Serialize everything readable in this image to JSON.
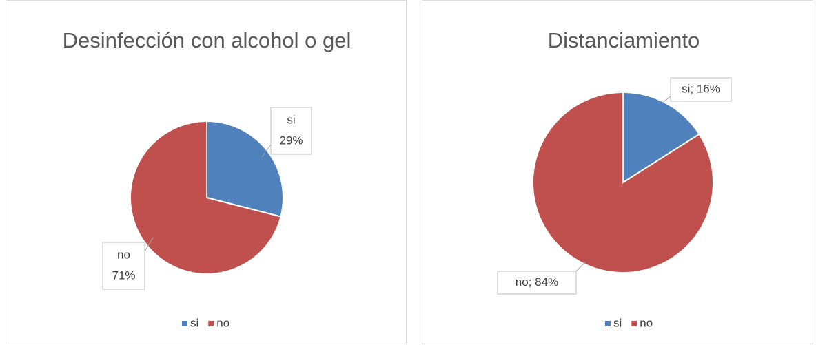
{
  "chart_data": [
    {
      "type": "pie",
      "title": "Desinfección con alcohol o gel",
      "categories": [
        "si",
        "no"
      ],
      "values": [
        29,
        71
      ],
      "value_labels": [
        "29%",
        "71%"
      ],
      "colors": [
        "#4f81bd",
        "#c0504d"
      ],
      "legend": "bottom"
    },
    {
      "type": "pie",
      "title": "Distanciamiento",
      "categories": [
        "si",
        "no"
      ],
      "values": [
        16,
        84
      ],
      "value_labels": [
        "si; 16%",
        "no; 84%"
      ],
      "colors": [
        "#4f81bd",
        "#c0504d"
      ],
      "legend": "bottom"
    }
  ]
}
